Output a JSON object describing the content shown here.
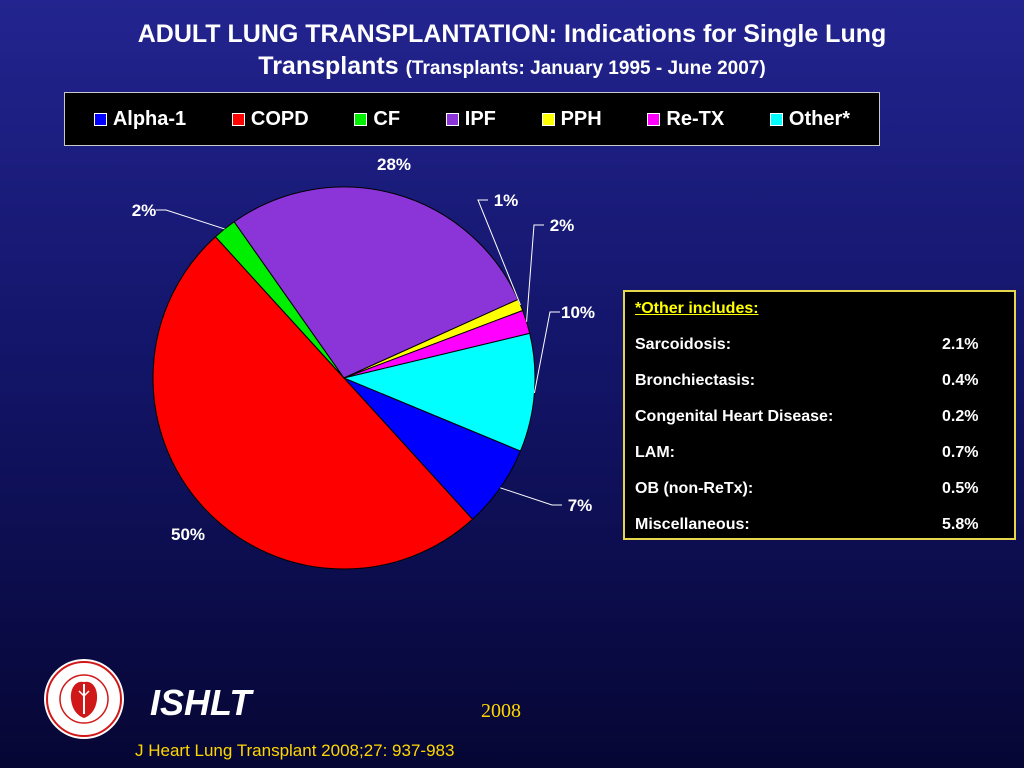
{
  "title": {
    "line1": "ADULT LUNG TRANSPLANTATION: Indications for Single Lung",
    "line2": "Transplants",
    "subtitle": "(Transplants: January 1995 - June 2007)"
  },
  "chart_data": {
    "type": "pie",
    "title": "ADULT LUNG TRANSPLANTATION: Indications for Single Lung Transplants (Transplants: January 1995 - June 2007)",
    "legend_placement": "top",
    "categories": [
      "Alpha-1",
      "COPD",
      "CF",
      "IPF",
      "PPH",
      "Re-TX",
      "Other*"
    ],
    "values": [
      7,
      50,
      2,
      28,
      1,
      2,
      10
    ],
    "data_labels": [
      "7%",
      "50%",
      "2%",
      "28%",
      "1%",
      "2%",
      "10%"
    ],
    "colors": [
      "#0000ff",
      "#ff0000",
      "#00ee00",
      "#8b34d8",
      "#ffff00",
      "#ff00ff",
      "#00ffff"
    ]
  },
  "other_box": {
    "heading": "*Other includes:",
    "rows": [
      {
        "label": "Sarcoidosis:",
        "value": "2.1%"
      },
      {
        "label": "Bronchiectasis:",
        "value": "0.4%"
      },
      {
        "label": "Congenital Heart Disease:",
        "value": "0.2%"
      },
      {
        "label": "LAM:",
        "value": "0.7%"
      },
      {
        "label": "OB (non-ReTx):",
        "value": "0.5%"
      },
      {
        "label": "Miscellaneous:",
        "value": "5.8%"
      }
    ]
  },
  "footer": {
    "logo_name": "ishlt-seal-logo",
    "brand": "ISHLT",
    "year": "2008",
    "citation": "J Heart Lung Transplant 2008;27: 937-983"
  },
  "colors": {
    "background_top": "#23248f",
    "background_bottom": "#060634",
    "footer_text": "#ffd700",
    "box_border": "#e8d64a"
  }
}
